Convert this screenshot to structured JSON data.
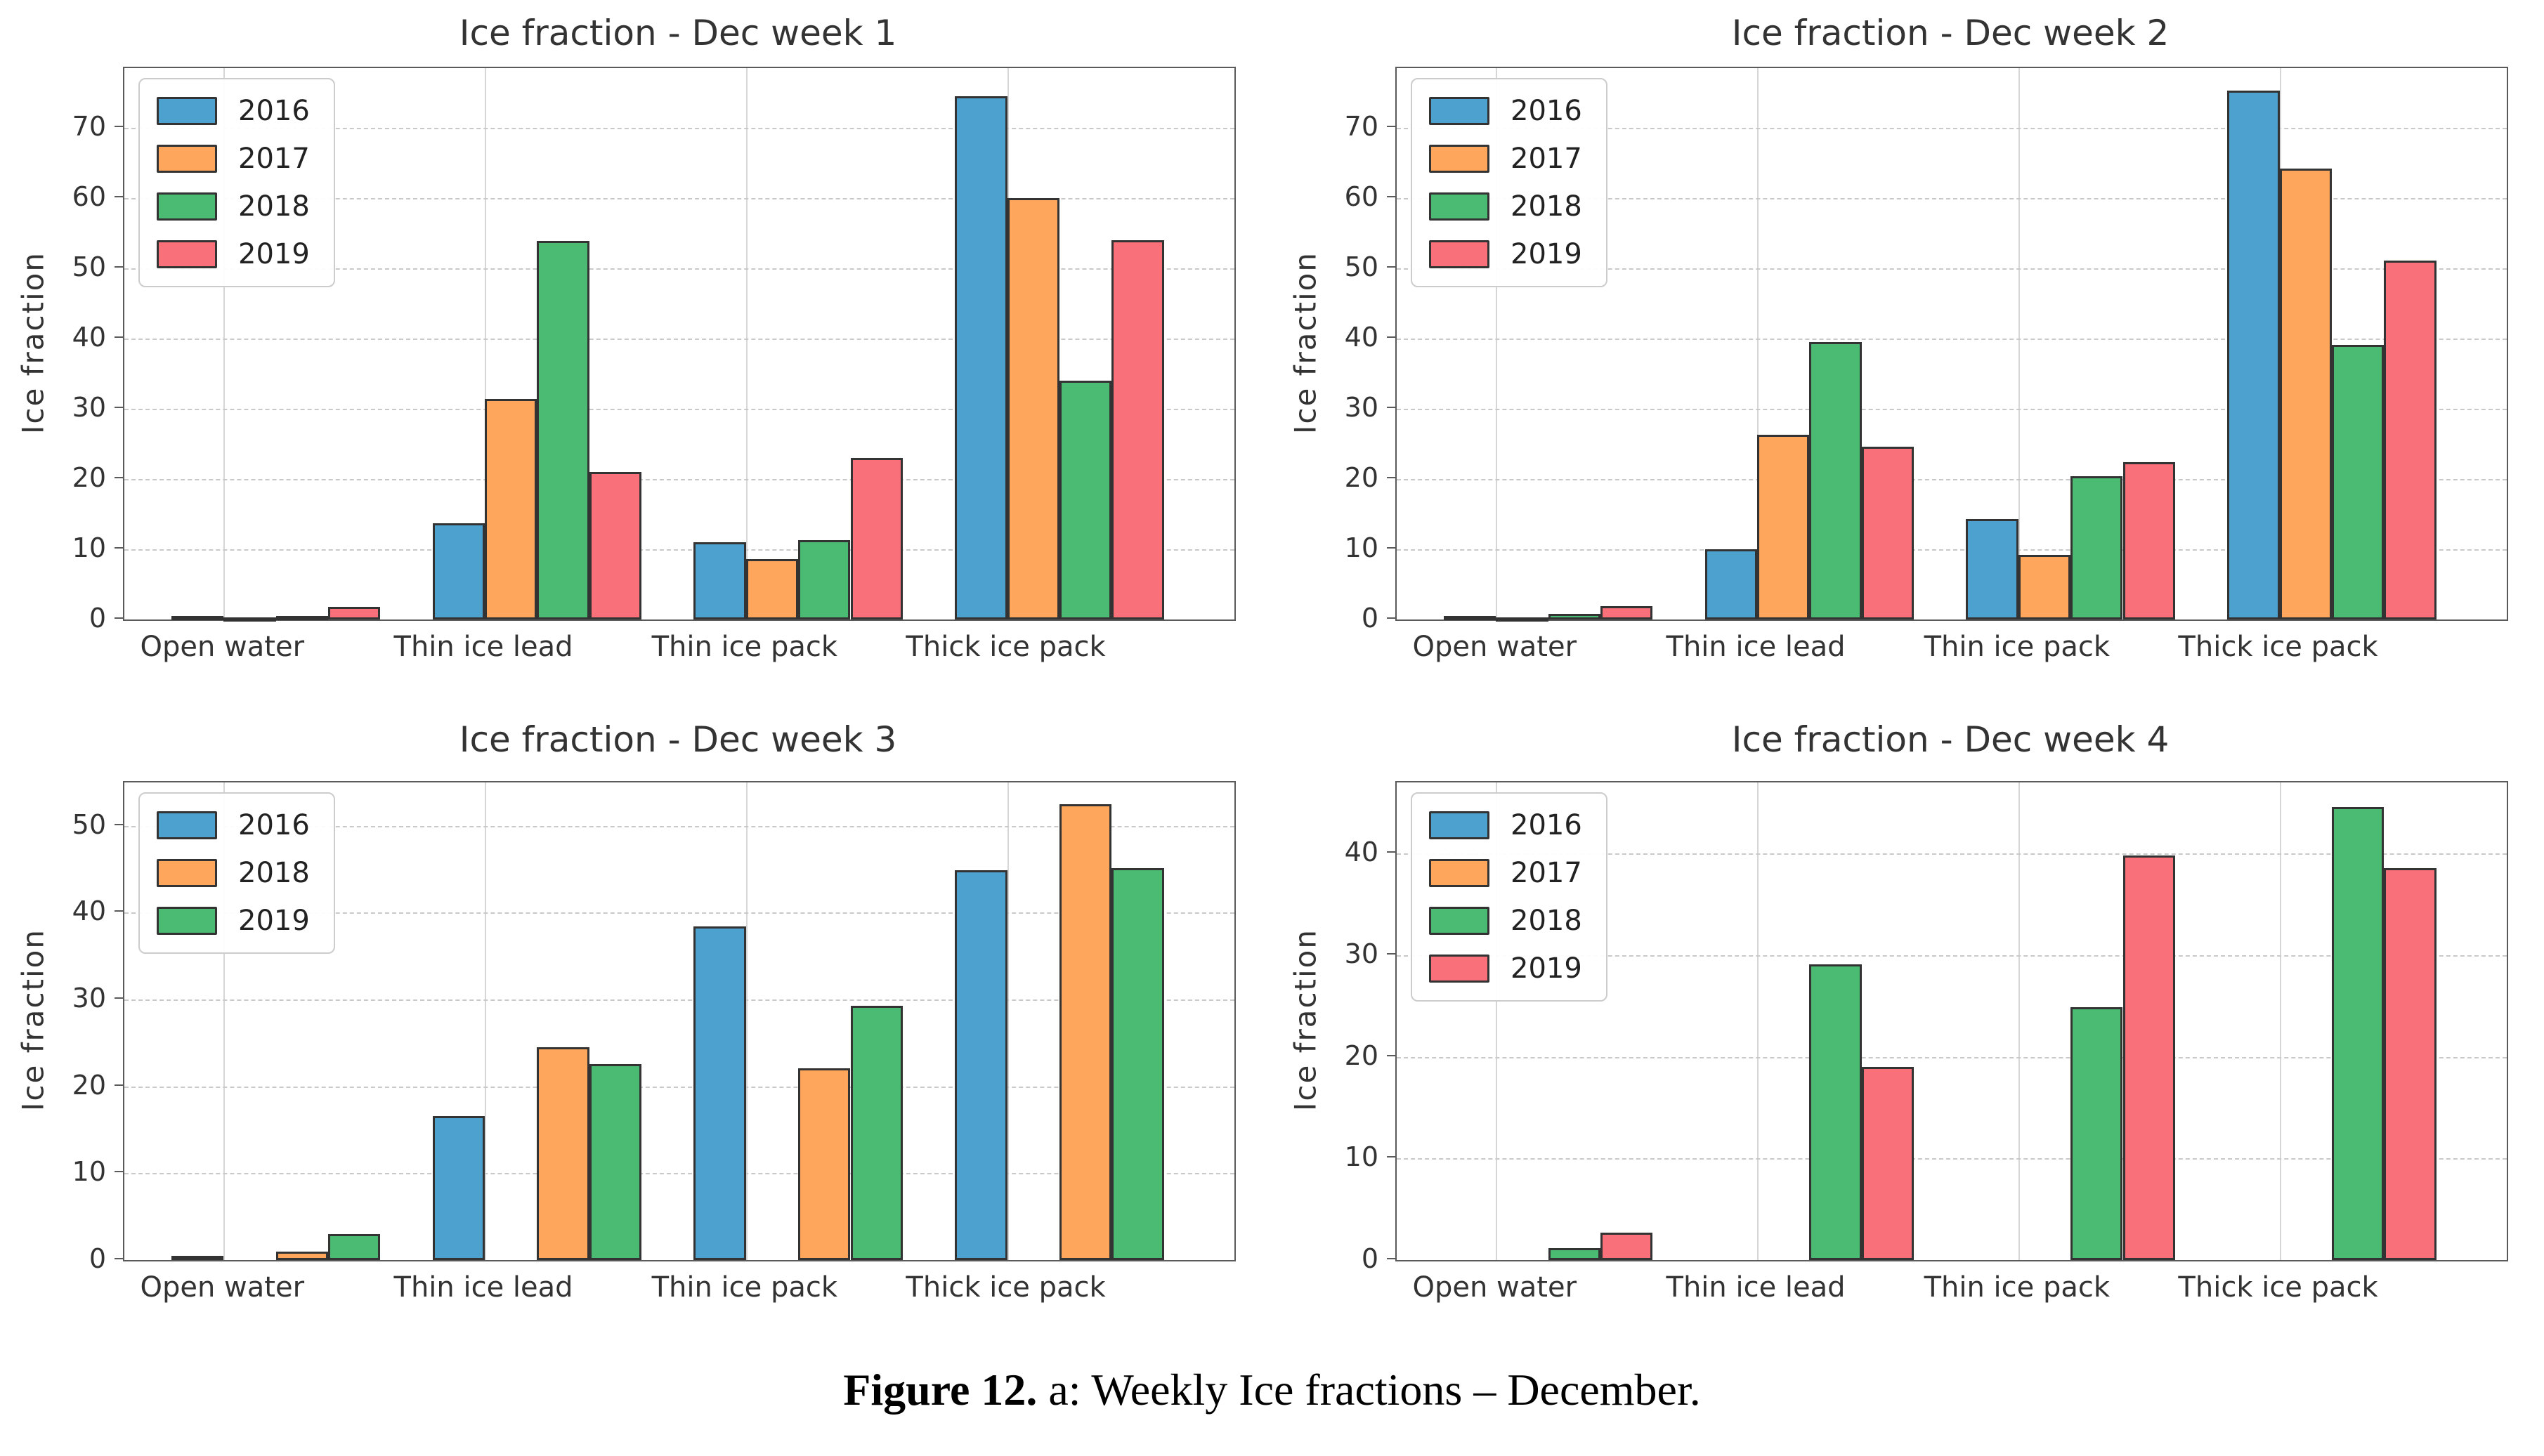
{
  "caption": {
    "label": "Figure 12.",
    "text": " a: Weekly Ice fractions – December."
  },
  "colors": {
    "blue": "#4CA1CF",
    "orange": "#FFA65D",
    "green": "#4BBB73",
    "red": "#F9707B",
    "bar_edge": "#333333",
    "spine": "#5a5a5a",
    "h_grid": "#c9c9c9",
    "v_grid": "#d6d6d6",
    "text": "#333333"
  },
  "chart_data": [
    {
      "type": "bar",
      "title": "Ice fraction - Dec week 1",
      "ylabel": "Ice fraction",
      "xlabel": "",
      "categories": [
        "Open water",
        "Thin ice lead",
        "Thin ice pack",
        "Thick ice pack"
      ],
      "yticks": [
        0,
        10,
        20,
        30,
        40,
        50,
        60,
        70
      ],
      "ylim": [
        0,
        78.5
      ],
      "grid": true,
      "legend_position": "upper-left",
      "legend": [
        {
          "label": "2016",
          "color": "blue"
        },
        {
          "label": "2017",
          "color": "orange"
        },
        {
          "label": "2018",
          "color": "green"
        },
        {
          "label": "2019",
          "color": "red"
        }
      ],
      "series": [
        {
          "name": "2016",
          "color": "blue",
          "slot": 0,
          "values": [
            0.5,
            13.7,
            11.0,
            74.5
          ]
        },
        {
          "name": "2017",
          "color": "orange",
          "slot": 1,
          "values": [
            0.3,
            31.4,
            8.6,
            60.0
          ]
        },
        {
          "name": "2018",
          "color": "green",
          "slot": 2,
          "values": [
            0.5,
            53.9,
            11.3,
            34.0
          ]
        },
        {
          "name": "2019",
          "color": "red",
          "slot": 3,
          "values": [
            1.8,
            21.0,
            23.0,
            54.0
          ]
        }
      ]
    },
    {
      "type": "bar",
      "title": "Ice fraction - Dec week 2",
      "ylabel": "Ice fraction",
      "xlabel": "",
      "categories": [
        "Open water",
        "Thin ice lead",
        "Thin ice pack",
        "Thick ice pack"
      ],
      "yticks": [
        0,
        10,
        20,
        30,
        40,
        50,
        60,
        70
      ],
      "ylim": [
        0,
        78.5
      ],
      "grid": true,
      "legend_position": "upper-left",
      "legend": [
        {
          "label": "2016",
          "color": "blue"
        },
        {
          "label": "2017",
          "color": "orange"
        },
        {
          "label": "2018",
          "color": "green"
        },
        {
          "label": "2019",
          "color": "red"
        }
      ],
      "series": [
        {
          "name": "2016",
          "color": "blue",
          "slot": 0,
          "values": [
            0.5,
            10.0,
            14.3,
            75.3
          ]
        },
        {
          "name": "2017",
          "color": "orange",
          "slot": 1,
          "values": [
            0.3,
            26.3,
            9.2,
            64.2
          ]
        },
        {
          "name": "2018",
          "color": "green",
          "slot": 2,
          "values": [
            0.8,
            39.5,
            20.4,
            39.1
          ]
        },
        {
          "name": "2019",
          "color": "red",
          "slot": 3,
          "values": [
            1.9,
            24.6,
            22.4,
            51.1
          ]
        }
      ]
    },
    {
      "type": "bar",
      "title": "Ice fraction - Dec week 3",
      "ylabel": "Ice fraction",
      "xlabel": "",
      "categories": [
        "Open water",
        "Thin ice lead",
        "Thin ice pack",
        "Thick ice pack"
      ],
      "yticks": [
        0,
        10,
        20,
        30,
        40,
        50
      ],
      "ylim": [
        0,
        55
      ],
      "grid": true,
      "legend_position": "upper-left",
      "legend": [
        {
          "label": "2016",
          "color": "blue"
        },
        {
          "label": "2018",
          "color": "orange"
        },
        {
          "label": "2019",
          "color": "green"
        }
      ],
      "series": [
        {
          "name": "2016",
          "color": "blue",
          "slot": 0,
          "values": [
            0.5,
            16.6,
            38.4,
            44.9
          ]
        },
        {
          "name": "2018",
          "color": "orange",
          "slot": 2,
          "values": [
            1.0,
            24.5,
            22.1,
            52.5
          ]
        },
        {
          "name": "2019",
          "color": "green",
          "slot": 3,
          "values": [
            3.0,
            22.6,
            29.3,
            45.1
          ]
        }
      ]
    },
    {
      "type": "bar",
      "title": "Ice fraction - Dec week 4",
      "ylabel": "Ice fraction",
      "xlabel": "",
      "categories": [
        "Open water",
        "Thin ice lead",
        "Thin ice pack",
        "Thick ice pack"
      ],
      "yticks": [
        0,
        10,
        20,
        30,
        40
      ],
      "ylim": [
        0,
        47
      ],
      "grid": true,
      "legend_position": "upper-left",
      "legend": [
        {
          "label": "2016",
          "color": "blue"
        },
        {
          "label": "2017",
          "color": "orange"
        },
        {
          "label": "2018",
          "color": "green"
        },
        {
          "label": "2019",
          "color": "red"
        }
      ],
      "series": [
        {
          "name": "2018",
          "color": "green",
          "slot": 2,
          "values": [
            1.2,
            29.1,
            24.9,
            44.6
          ]
        },
        {
          "name": "2019",
          "color": "red",
          "slot": 3,
          "values": [
            2.7,
            19.0,
            39.8,
            38.6
          ]
        }
      ]
    }
  ]
}
